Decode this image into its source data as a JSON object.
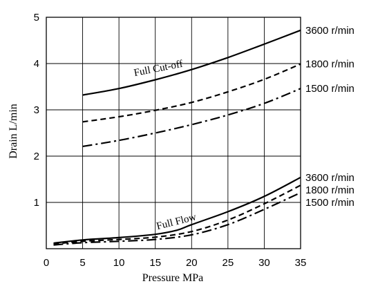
{
  "chart_data": {
    "type": "line",
    "xlabel": "Pressure  MPa",
    "ylabel": "Drain  L/min",
    "xlim": [
      0,
      35
    ],
    "ylim": [
      0,
      5
    ],
    "xticks": [
      0,
      5,
      10,
      15,
      20,
      25,
      30,
      35
    ],
    "yticks": [
      1,
      2,
      3,
      4,
      5
    ],
    "grid": true,
    "annotations": [
      {
        "text": "Full Cut-off",
        "x": 15.5,
        "y": 3.83
      },
      {
        "text": "Full Flow",
        "x": 18,
        "y": 0.52
      }
    ],
    "series": [
      {
        "name": "3600 r/min",
        "group": "Full Cut-off",
        "dash": "solid",
        "x": [
          5,
          10,
          15,
          20,
          25,
          30,
          35
        ],
        "y": [
          3.32,
          3.46,
          3.65,
          3.87,
          4.13,
          4.42,
          4.72
        ]
      },
      {
        "name": "1800 r/min",
        "group": "Full Cut-off",
        "dash": "dashed",
        "x": [
          5,
          10,
          15,
          20,
          25,
          30,
          35
        ],
        "y": [
          2.74,
          2.85,
          2.99,
          3.16,
          3.39,
          3.66,
          3.99
        ]
      },
      {
        "name": "1500 r/min",
        "group": "Full Cut-off",
        "dash": "dashdot",
        "x": [
          5,
          10,
          15,
          20,
          25,
          30,
          35
        ],
        "y": [
          2.21,
          2.34,
          2.5,
          2.68,
          2.89,
          3.14,
          3.46
        ]
      },
      {
        "name": "3600 r/min",
        "group": "Full Flow",
        "dash": "solid",
        "x": [
          1,
          5,
          10,
          15,
          18,
          20,
          25,
          30,
          35
        ],
        "y": [
          0.12,
          0.19,
          0.24,
          0.31,
          0.4,
          0.52,
          0.8,
          1.13,
          1.54
        ]
      },
      {
        "name": "1800 r/min",
        "group": "Full Flow",
        "dash": "dashed",
        "x": [
          1,
          5,
          10,
          15,
          20,
          25,
          30,
          35
        ],
        "y": [
          0.1,
          0.16,
          0.2,
          0.25,
          0.37,
          0.62,
          0.97,
          1.37
        ]
      },
      {
        "name": "1500 r/min",
        "group": "Full Flow",
        "dash": "dashdot",
        "x": [
          1,
          5,
          10,
          15,
          20,
          25,
          30,
          35
        ],
        "y": [
          0.08,
          0.13,
          0.16,
          0.2,
          0.3,
          0.52,
          0.85,
          1.21
        ]
      }
    ]
  }
}
